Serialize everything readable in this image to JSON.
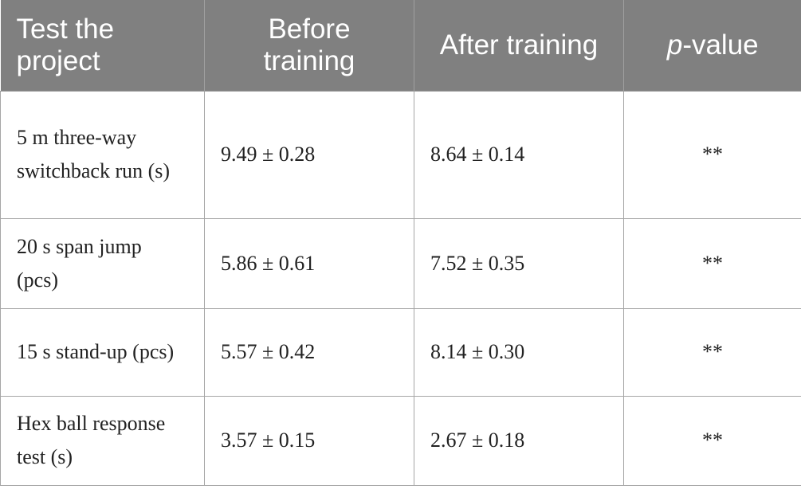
{
  "table": {
    "headers": [
      "Test the project",
      "Before training",
      "After training"
    ],
    "pvalue_header": {
      "italic": "p",
      "rest": "-value"
    },
    "rows": [
      {
        "test": "5 m three-way switchback run (s)",
        "before": "9.49 ± 0.28",
        "after": "8.64 ± 0.14",
        "p": "**"
      },
      {
        "test": "20 s span jump (pcs)",
        "before": "5.86 ± 0.61",
        "after": "7.52 ± 0.35",
        "p": "**"
      },
      {
        "test": "15 s stand-up (pcs)",
        "before": "5.57 ± 0.42",
        "after": "8.14 ± 0.30",
        "p": "**"
      },
      {
        "test": "Hex ball response test (s)",
        "before": "3.57 ± 0.15",
        "after": "2.67 ± 0.18",
        "p": "**"
      }
    ]
  }
}
